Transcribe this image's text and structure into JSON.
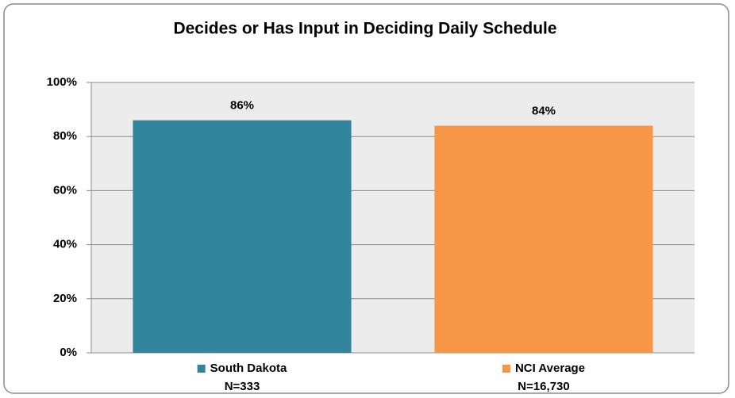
{
  "chart_data": {
    "type": "bar",
    "title": "Decides or Has Input in Deciding Daily Schedule",
    "categories": [
      "South Dakota",
      "NCI Average"
    ],
    "sublabels": [
      "N=333",
      "N=16,730"
    ],
    "values": [
      86,
      84
    ],
    "value_labels": [
      "86%",
      "84%"
    ],
    "colors": [
      "#31849b",
      "#f79646"
    ],
    "ylim": [
      0,
      100
    ],
    "yticks": [
      {
        "value": 0,
        "label": "0%"
      },
      {
        "value": 20,
        "label": "20%"
      },
      {
        "value": 40,
        "label": "40%"
      },
      {
        "value": 60,
        "label": "60%"
      },
      {
        "value": 80,
        "label": "80%"
      },
      {
        "value": 100,
        "label": "100%"
      }
    ],
    "grid": true
  }
}
